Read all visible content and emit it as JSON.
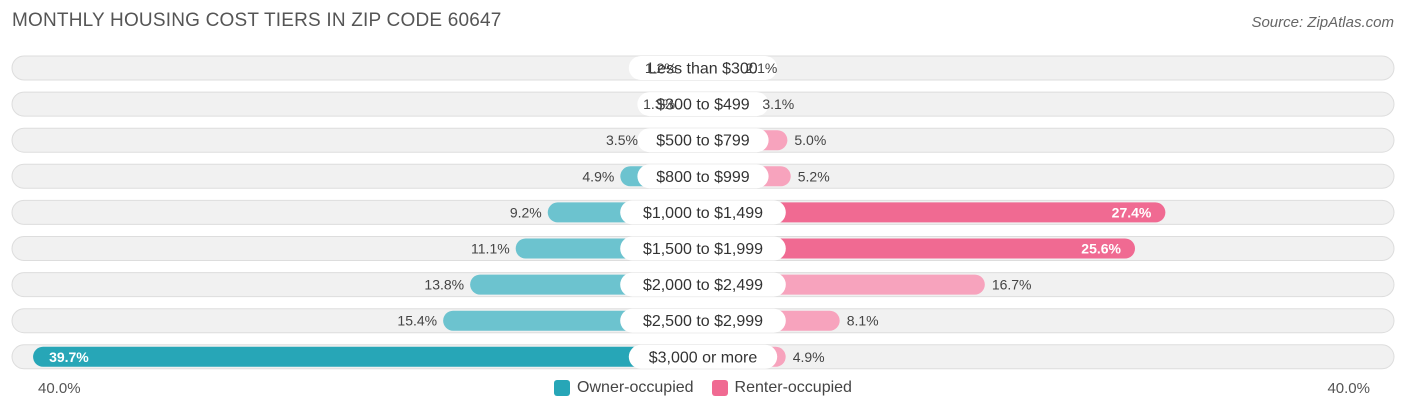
{
  "title": "MONTHLY HOUSING COST TIERS IN ZIP CODE 60647",
  "source": "Source: ZipAtlas.com",
  "axis": {
    "left_label": "40.0%",
    "right_label": "40.0%"
  },
  "legend": {
    "owner_label": "Owner-occupied",
    "renter_label": "Renter-occupied"
  },
  "colors": {
    "owner": "#6cc3cf",
    "owner_strong": "#27a6b7",
    "renter": "#f7a3bd",
    "renter_strong": "#f06a92",
    "row_bg": "#f1f1f1",
    "row_border": "#dddddd"
  },
  "chart_data": {
    "type": "bar",
    "orientation": "diverging-horizontal",
    "xlim": [
      0,
      40
    ],
    "categories": [
      "Less than $300",
      "$300 to $499",
      "$500 to $799",
      "$800 to $999",
      "$1,000 to $1,499",
      "$1,500 to $1,999",
      "$2,000 to $2,499",
      "$2,500 to $2,999",
      "$3,000 or more"
    ],
    "series": [
      {
        "name": "Owner-occupied",
        "values": [
          1.2,
          1.3,
          3.5,
          4.9,
          9.2,
          11.1,
          13.8,
          15.4,
          39.7
        ],
        "labels": [
          "1.2%",
          "1.3%",
          "3.5%",
          "4.9%",
          "9.2%",
          "11.1%",
          "13.8%",
          "15.4%",
          "39.7%"
        ]
      },
      {
        "name": "Renter-occupied",
        "values": [
          2.1,
          3.1,
          5.0,
          5.2,
          27.4,
          25.6,
          16.7,
          8.1,
          4.9
        ],
        "labels": [
          "2.1%",
          "3.1%",
          "5.0%",
          "5.2%",
          "27.4%",
          "25.6%",
          "16.7%",
          "8.1%",
          "4.9%"
        ]
      }
    ]
  }
}
